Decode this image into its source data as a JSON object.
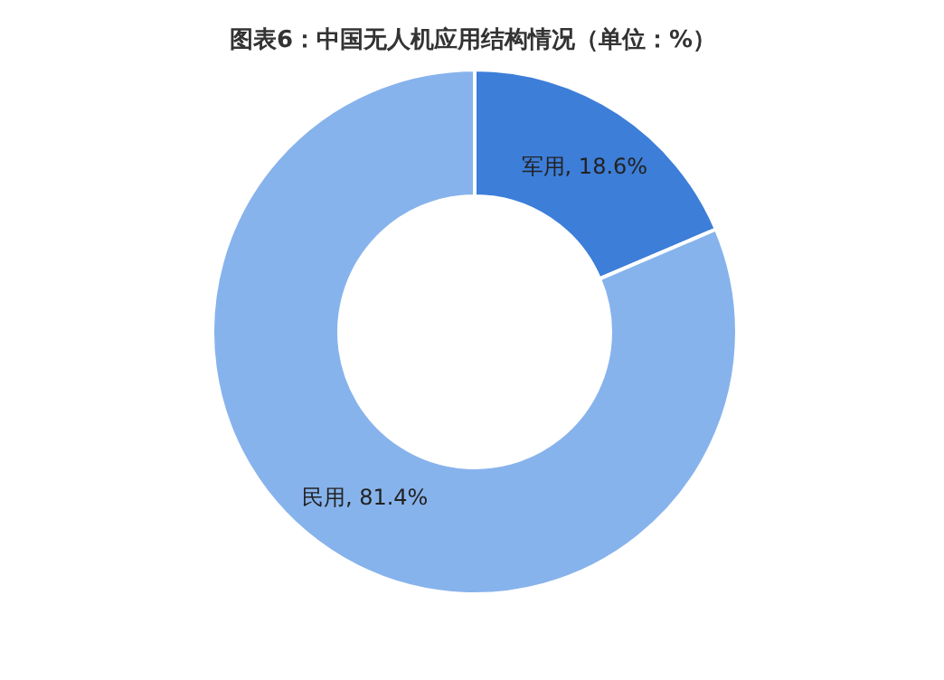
{
  "chart_data": {
    "type": "donut",
    "title": "图表6：中国无人机应用结构情况（单位：%）",
    "categories": [
      "军用",
      "民用"
    ],
    "values": [
      18.6,
      81.4
    ],
    "colors": [
      "#3d7ed8",
      "#87b3ec"
    ],
    "value_labels": [
      "18.6%",
      "81.4%"
    ]
  }
}
